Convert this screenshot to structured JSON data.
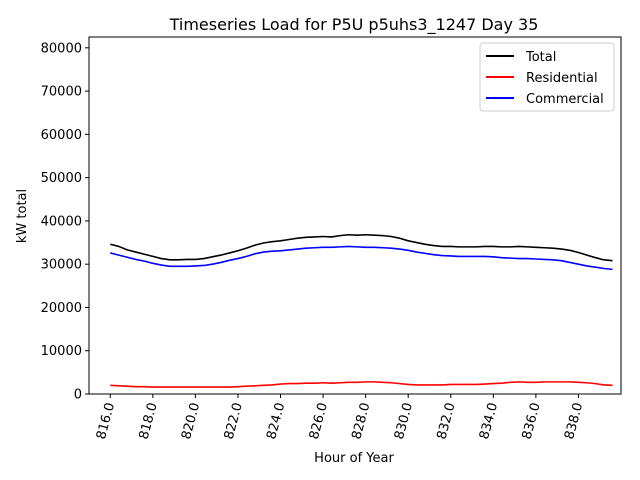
{
  "chart_data": {
    "type": "line",
    "title": "Timeseries Load for P5U p5uhs3_1247  Day 35",
    "xlabel": "Hour of Year",
    "ylabel": "kW total",
    "xlim": [
      815.0,
      840.0
    ],
    "ylim": [
      0,
      82500
    ],
    "xticks": [
      816,
      818,
      820,
      822,
      824,
      826,
      828,
      830,
      832,
      834,
      836,
      838
    ],
    "xtick_labels": [
      "816.0",
      "818.0",
      "820.0",
      "822.0",
      "824.0",
      "826.0",
      "828.0",
      "830.0",
      "832.0",
      "834.0",
      "836.0",
      "838.0"
    ],
    "yticks": [
      0,
      10000,
      20000,
      30000,
      40000,
      50000,
      60000,
      70000,
      80000
    ],
    "ytick_labels": [
      "0",
      "10000",
      "20000",
      "30000",
      "40000",
      "50000",
      "60000",
      "70000",
      "80000"
    ],
    "legend_position": "top-right",
    "x": [
      816.0,
      816.4,
      816.8,
      817.2,
      817.6,
      818.0,
      818.4,
      818.8,
      819.2,
      819.6,
      820.0,
      820.4,
      820.8,
      821.2,
      821.6,
      822.0,
      822.4,
      822.8,
      823.2,
      823.6,
      824.0,
      824.4,
      824.8,
      825.2,
      825.6,
      826.0,
      826.4,
      826.8,
      827.2,
      827.6,
      828.0,
      828.4,
      828.8,
      829.2,
      829.6,
      830.0,
      830.4,
      830.8,
      831.2,
      831.6,
      832.0,
      832.4,
      832.8,
      833.2,
      833.6,
      834.0,
      834.4,
      834.8,
      835.2,
      835.6,
      836.0,
      836.4,
      836.8,
      837.2,
      837.6,
      838.0,
      838.4,
      838.8,
      839.2,
      839.6
    ],
    "series": [
      {
        "name": "Total",
        "color": "#000000",
        "values": [
          34600,
          34100,
          33300,
          32800,
          32300,
          31800,
          31300,
          31000,
          31000,
          31100,
          31100,
          31300,
          31700,
          32100,
          32600,
          33100,
          33700,
          34400,
          34900,
          35200,
          35400,
          35700,
          36000,
          36200,
          36300,
          36400,
          36300,
          36600,
          36800,
          36700,
          36800,
          36700,
          36600,
          36400,
          36000,
          35400,
          35000,
          34600,
          34300,
          34100,
          34100,
          34000,
          34000,
          34000,
          34100,
          34100,
          34000,
          34000,
          34100,
          34000,
          33900,
          33800,
          33700,
          33500,
          33200,
          32700,
          32100,
          31500,
          31000,
          30800
        ]
      },
      {
        "name": "Residential",
        "color": "#ff0000",
        "values": [
          2000,
          1900,
          1800,
          1700,
          1700,
          1600,
          1600,
          1600,
          1600,
          1600,
          1600,
          1600,
          1600,
          1600,
          1600,
          1700,
          1800,
          1900,
          2000,
          2100,
          2300,
          2400,
          2400,
          2500,
          2500,
          2600,
          2500,
          2600,
          2700,
          2700,
          2800,
          2800,
          2700,
          2600,
          2400,
          2200,
          2100,
          2100,
          2100,
          2100,
          2200,
          2200,
          2200,
          2200,
          2300,
          2400,
          2500,
          2700,
          2800,
          2700,
          2700,
          2800,
          2800,
          2800,
          2800,
          2700,
          2600,
          2400,
          2100,
          2000
        ]
      },
      {
        "name": "Commercial",
        "color": "#0000ff",
        "values": [
          32600,
          32100,
          31600,
          31100,
          30700,
          30200,
          29800,
          29500,
          29500,
          29500,
          29600,
          29700,
          30000,
          30400,
          30900,
          31300,
          31800,
          32400,
          32800,
          33000,
          33100,
          33300,
          33500,
          33700,
          33800,
          33900,
          33900,
          34000,
          34100,
          34000,
          33900,
          33900,
          33800,
          33700,
          33500,
          33200,
          32800,
          32500,
          32200,
          32000,
          31900,
          31800,
          31800,
          31800,
          31800,
          31700,
          31500,
          31400,
          31300,
          31300,
          31200,
          31100,
          31000,
          30800,
          30400,
          30000,
          29600,
          29300,
          29000,
          28800
        ]
      }
    ]
  }
}
